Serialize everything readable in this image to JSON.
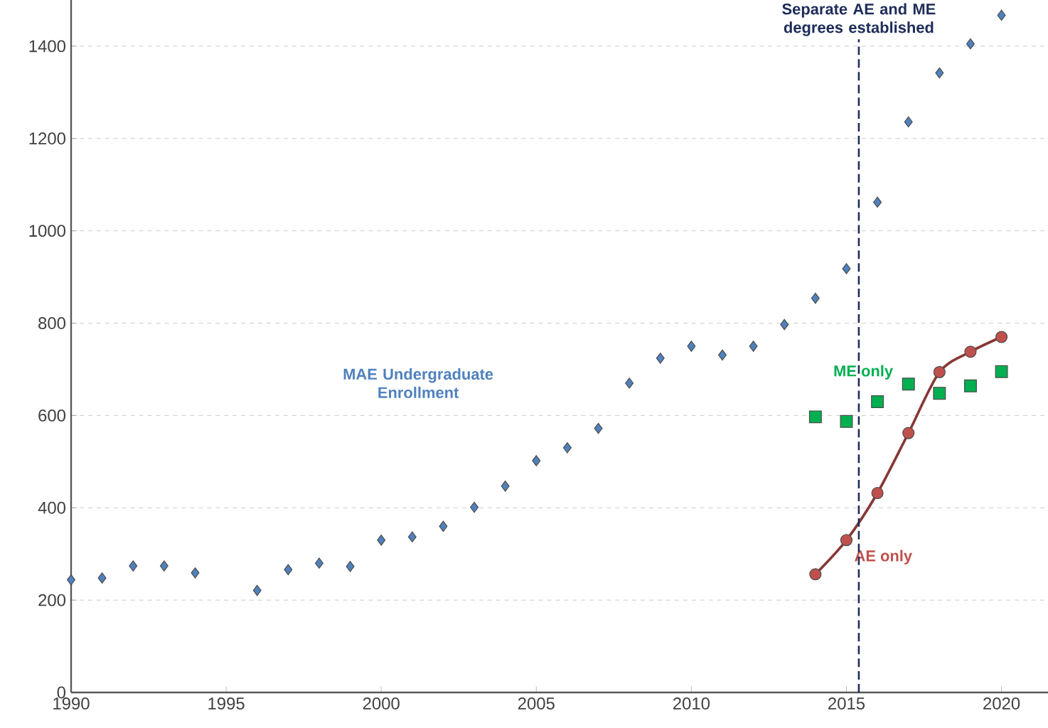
{
  "chart_data": {
    "type": "scatter",
    "x": [
      1990,
      1991,
      1992,
      1993,
      1994,
      1996,
      1997,
      1998,
      1999,
      2000,
      2001,
      2002,
      2003,
      2004,
      2005,
      2006,
      2007,
      2008,
      2009,
      2010,
      2011,
      2012,
      2013,
      2014,
      2015,
      2016,
      2017,
      2018,
      2019,
      2020
    ],
    "series": [
      {
        "name": "MAE Undergraduate Enrollment",
        "color": "#4f81bd",
        "marker": "diamond",
        "values": [
          244,
          248,
          274,
          274,
          259,
          221,
          266,
          280,
          273,
          330,
          337,
          360,
          401,
          447,
          502,
          530,
          572,
          670,
          724,
          750,
          731,
          750,
          797,
          854,
          918,
          1062,
          1236,
          1342,
          1405,
          1467
        ]
      },
      {
        "name": "ME only",
        "color": "#00b050",
        "marker": "square",
        "x": [
          2014,
          2015,
          2016,
          2017,
          2018,
          2019,
          2020
        ],
        "values": [
          597,
          587,
          630,
          668,
          648,
          664,
          695
        ]
      },
      {
        "name": "AE only",
        "type": "line",
        "color": "#c0504d",
        "marker": "circle",
        "x": [
          2014,
          2015,
          2016,
          2017,
          2018,
          2019,
          2020
        ],
        "values": [
          256,
          330,
          432,
          562,
          694,
          738,
          770
        ]
      }
    ],
    "xlim": [
      1990,
      2021.5
    ],
    "xticks": [
      1990,
      1995,
      2000,
      2005,
      2010,
      2015,
      2020
    ],
    "ylim": [
      0,
      1500
    ],
    "yticks": [
      0,
      200,
      400,
      600,
      800,
      1000,
      1200,
      1400
    ],
    "grid": "y",
    "ref_lines": [
      {
        "axis": "x",
        "value": 2015.4,
        "label": "Separate AE and ME degrees established",
        "color": "#1f2d5a",
        "line_style": "dashed"
      }
    ]
  }
}
